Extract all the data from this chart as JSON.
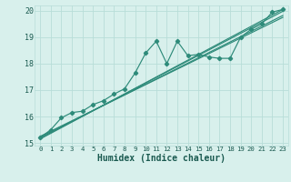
{
  "title": "",
  "xlabel": "Humidex (Indice chaleur)",
  "ylabel": "",
  "xlim": [
    -0.5,
    23.5
  ],
  "ylim": [
    14.9,
    20.2
  ],
  "yticks": [
    15,
    16,
    17,
    18,
    19,
    20
  ],
  "xticks": [
    0,
    1,
    2,
    3,
    4,
    5,
    6,
    7,
    8,
    9,
    10,
    11,
    12,
    13,
    14,
    15,
    16,
    17,
    18,
    19,
    20,
    21,
    22,
    23
  ],
  "bg_color": "#d8f0ec",
  "grid_color": "#b8ddd8",
  "line_color": "#2e8b7a",
  "series": [
    [
      0,
      15.2
    ],
    [
      1,
      15.5
    ],
    [
      2,
      15.95
    ],
    [
      3,
      16.15
    ],
    [
      4,
      16.2
    ],
    [
      5,
      16.45
    ],
    [
      6,
      16.6
    ],
    [
      7,
      16.85
    ],
    [
      8,
      17.05
    ],
    [
      9,
      17.65
    ],
    [
      10,
      18.4
    ],
    [
      11,
      18.85
    ],
    [
      12,
      18.0
    ],
    [
      13,
      18.85
    ],
    [
      14,
      18.3
    ],
    [
      15,
      18.35
    ],
    [
      16,
      18.25
    ],
    [
      17,
      18.2
    ],
    [
      18,
      18.2
    ],
    [
      19,
      19.0
    ],
    [
      20,
      19.3
    ],
    [
      21,
      19.5
    ],
    [
      22,
      19.95
    ],
    [
      23,
      20.05
    ]
  ],
  "regression_lines": [
    {
      "x0": 0,
      "y0": 15.18,
      "x1": 23,
      "y1": 19.98
    },
    {
      "x0": 0,
      "y0": 15.22,
      "x1": 23,
      "y1": 19.82
    },
    {
      "x0": 0,
      "y0": 15.15,
      "x1": 23,
      "y1": 20.05
    },
    {
      "x0": 0,
      "y0": 15.25,
      "x1": 23,
      "y1": 19.75
    }
  ]
}
